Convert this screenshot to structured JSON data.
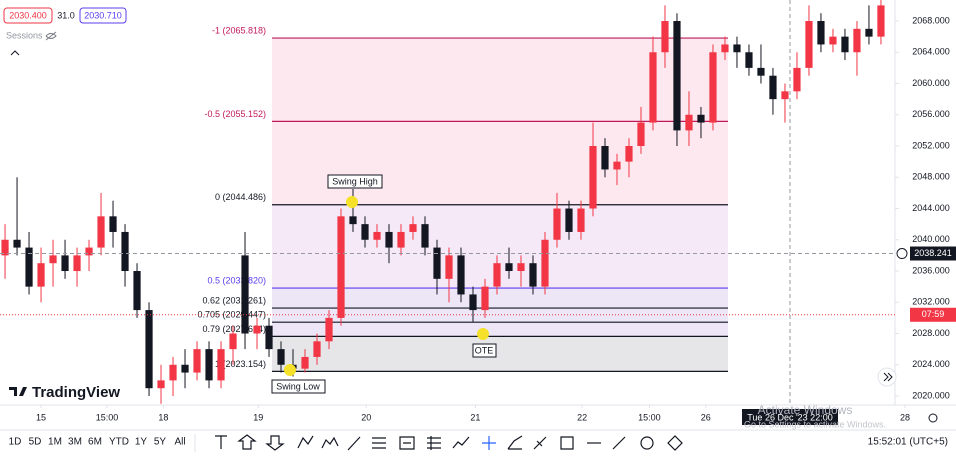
{
  "header": {
    "bid": "2030.400",
    "spread": "31.0",
    "ask": "2030.710",
    "sessions": "Sessions"
  },
  "chart_data": {
    "type": "candlestick",
    "open": [
      2038,
      2040,
      2039,
      2034,
      2037,
      2038,
      2036,
      2038,
      2039,
      2043,
      2041,
      2036,
      2031,
      2021,
      2022,
      2024,
      2023,
      2026,
      2022,
      2026,
      2038,
      2028,
      2029,
      2026,
      2024,
      2023.5,
      2025,
      2027,
      2030,
      2043,
      2042,
      2040,
      2041,
      2039,
      2041,
      2042,
      2039,
      2035,
      2038,
      2033,
      2031,
      2034,
      2037,
      2036,
      2037,
      2034,
      2040,
      2044,
      2041,
      2044,
      2052,
      2049,
      2050,
      2052,
      2055,
      2064,
      2068,
      2054,
      2056,
      2055,
      2064,
      2065,
      2064,
      2062,
      2061,
      2058,
      2059,
      2062,
      2068,
      2065,
      2066,
      2064,
      2067,
      2066
    ],
    "high": [
      2042,
      2048,
      2041,
      2039,
      2040,
      2040,
      2039,
      2040,
      2046,
      2045,
      2042,
      2037,
      2032,
      2024,
      2025,
      2026,
      2027,
      2027,
      2027,
      2029,
      2041,
      2030,
      2030,
      2027,
      2026,
      2026,
      2028,
      2031,
      2044,
      2046.5,
      2043,
      2042,
      2042,
      2042,
      2043,
      2043,
      2040,
      2039,
      2039,
      2034,
      2035,
      2038,
      2039,
      2038,
      2038,
      2041,
      2046,
      2045,
      2045,
      2055,
      2053,
      2051,
      2053,
      2057,
      2066,
      2070,
      2069,
      2059,
      2057,
      2065,
      2066,
      2066,
      2065,
      2065,
      2062,
      2060,
      2064,
      2070,
      2069,
      2067,
      2067,
      2068,
      2070,
      2071
    ],
    "low": [
      2035,
      2038,
      2033,
      2032,
      2034,
      2035,
      2034,
      2036,
      2038,
      2039,
      2034,
      2030,
      2020,
      2019,
      2020,
      2021,
      2022,
      2021,
      2021,
      2024,
      2026,
      2026,
      2025,
      2023,
      2022.5,
      2023,
      2024,
      2026,
      2029,
      2041,
      2039,
      2039,
      2037,
      2038,
      2040,
      2038,
      2033,
      2032,
      2032,
      2029.5,
      2030,
      2033,
      2035,
      2034,
      2033,
      2033,
      2039,
      2040,
      2040,
      2043,
      2048,
      2047,
      2048,
      2051,
      2054,
      2062,
      2052,
      2052,
      2053,
      2054,
      2063,
      2062,
      2061,
      2060,
      2056,
      2055,
      2058,
      2061,
      2064,
      2064,
      2063,
      2061,
      2065,
      2065
    ],
    "close": [
      2040,
      2039,
      2034,
      2037,
      2038,
      2036,
      2038,
      2039,
      2043,
      2041,
      2036,
      2031,
      2021,
      2022,
      2024,
      2023,
      2026,
      2022,
      2026,
      2028,
      2028,
      2029,
      2026,
      2024,
      2023.5,
      2025,
      2027,
      2030,
      2043,
      2042,
      2040,
      2041,
      2039,
      2041,
      2042,
      2039,
      2035,
      2038,
      2033,
      2031,
      2034,
      2037,
      2036,
      2037,
      2034,
      2040,
      2044,
      2041,
      2044,
      2052,
      2049,
      2050,
      2052,
      2055,
      2064,
      2068,
      2054,
      2056,
      2055,
      2064,
      2065,
      2064,
      2062,
      2061,
      2058,
      2059,
      2062,
      2068,
      2065,
      2066,
      2064,
      2067,
      2066,
      2070
    ],
    "up_color": "#f23645",
    "down_color": "#131722",
    "ylim": [
      2018.85,
      2070.69
    ],
    "yticks": [
      {
        "value": 2020,
        "label": "2020.000"
      },
      {
        "value": 2024,
        "label": "2024.000"
      },
      {
        "value": 2028,
        "label": "2028.000"
      },
      {
        "value": 2032,
        "label": "2032.000"
      },
      {
        "value": 2036,
        "label": "2036.000"
      },
      {
        "value": 2040,
        "label": "2040.000"
      },
      {
        "value": 2044,
        "label": "2044.000"
      },
      {
        "value": 2048,
        "label": "2048.000"
      },
      {
        "value": 2052,
        "label": "2052.000"
      },
      {
        "value": 2056,
        "label": "2056.000"
      },
      {
        "value": 2060,
        "label": "2060.000"
      },
      {
        "value": 2064,
        "label": "2064.000"
      },
      {
        "value": 2068,
        "label": "2068.000"
      }
    ],
    "xlim": [
      -0.42,
      74.17
    ],
    "xticks": [
      {
        "value": 3,
        "label": "15"
      },
      {
        "value": 8.5,
        "label": "15:00"
      },
      {
        "value": 13.2,
        "label": "18"
      },
      {
        "value": 21.1,
        "label": "19"
      },
      {
        "value": 30.1,
        "label": "20"
      },
      {
        "value": 39.2,
        "label": "21"
      },
      {
        "value": 48.1,
        "label": "22"
      },
      {
        "value": 53.7,
        "label": "15:00"
      },
      {
        "value": 58.4,
        "label": "26"
      },
      {
        "value": 75,
        "label": "28"
      }
    ],
    "fib_levels": [
      {
        "value": 2065.818,
        "label": "-1 (2065.818)",
        "color": "#c2185b"
      },
      {
        "value": 2055.152,
        "label": "-0.5 (2055.152)",
        "color": "#c2185b"
      },
      {
        "value": 2044.486,
        "label": "0 (2044.486)",
        "color": "#131722"
      },
      {
        "value": 2033.82,
        "label": "0.5 (2033.820)",
        "color": "#5b3cf0"
      },
      {
        "value": 2031.261,
        "label": "0.62 (2031.261)",
        "color": "#131722"
      },
      {
        "value": 2029.447,
        "label": "0.705 (2029.447)",
        "color": "#131722"
      },
      {
        "value": 2027.634,
        "label": "0.79 (2027.634)",
        "color": "#131722"
      },
      {
        "value": 2023.154,
        "label": "1 (2023.154)",
        "color": "#131722"
      }
    ],
    "annotations": [
      "Swing High",
      "Swing Low",
      "OTE"
    ],
    "crosshair_price": 2038.241,
    "countdown": "07:59",
    "crosshair_time": "Tue 26 Dec '23  22:00"
  },
  "toolbar": {
    "ranges": [
      "1D",
      "5D",
      "1M",
      "3M",
      "6M",
      "YTD",
      "1Y",
      "5Y",
      "All"
    ],
    "clock": "15:52:01 (UTC+5)"
  },
  "logo": "TradingView",
  "watermark": {
    "title": "Activate Windows",
    "subtitle": "Go to Settings to activate Windows."
  }
}
